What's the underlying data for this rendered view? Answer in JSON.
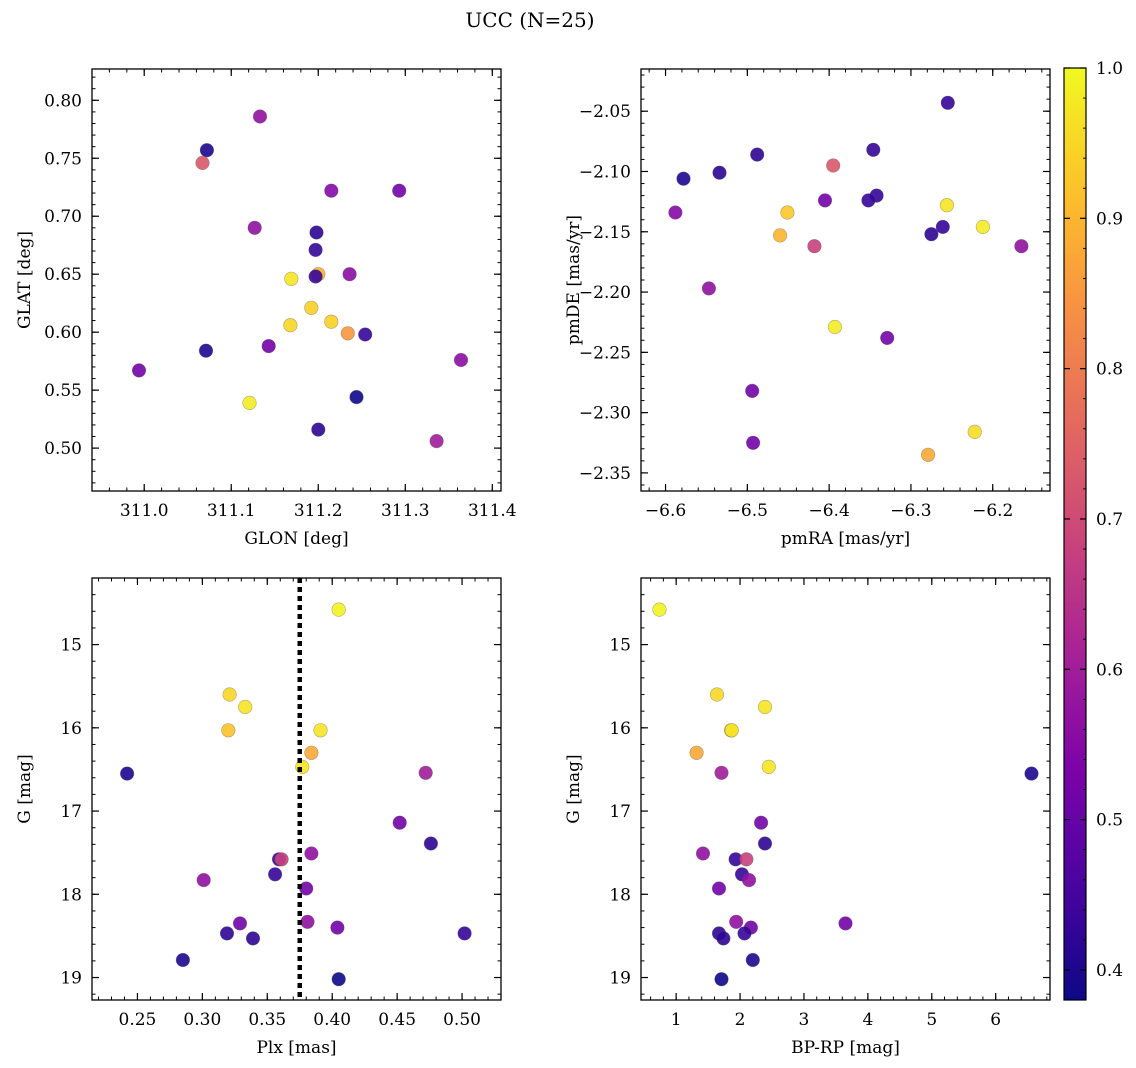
{
  "title": "UCC (N=25)",
  "colorbar": {
    "min": 0.38,
    "max": 1.0,
    "ticks": [
      "0.4",
      "0.5",
      "0.6",
      "0.7",
      "0.8",
      "0.9",
      "1.0"
    ],
    "colormap": "plasma"
  },
  "chart_data": [
    {
      "type": "scatter",
      "xlabel": "GLON [deg]",
      "ylabel": "GLAT [deg]",
      "xlim": [
        310.94,
        311.41
      ],
      "ylim": [
        0.463,
        0.827
      ],
      "xticks": [
        "311.0",
        "311.1",
        "311.2",
        "311.3",
        "311.4"
      ],
      "yticks": [
        "0.50",
        "0.55",
        "0.60",
        "0.65",
        "0.70",
        "0.75",
        "0.80"
      ],
      "points": [
        {
          "x": 311.133,
          "y": 0.786,
          "c": 0.57
        },
        {
          "x": 311.072,
          "y": 0.757,
          "c": 0.4
        },
        {
          "x": 311.067,
          "y": 0.746,
          "c": 0.73
        },
        {
          "x": 311.215,
          "y": 0.722,
          "c": 0.55
        },
        {
          "x": 311.293,
          "y": 0.722,
          "c": 0.52
        },
        {
          "x": 311.127,
          "y": 0.69,
          "c": 0.57
        },
        {
          "x": 311.198,
          "y": 0.686,
          "c": 0.42
        },
        {
          "x": 311.197,
          "y": 0.671,
          "c": 0.43
        },
        {
          "x": 311.2,
          "y": 0.65,
          "c": 0.9
        },
        {
          "x": 311.236,
          "y": 0.65,
          "c": 0.56
        },
        {
          "x": 311.197,
          "y": 0.648,
          "c": 0.43
        },
        {
          "x": 311.169,
          "y": 0.646,
          "c": 0.97
        },
        {
          "x": 311.192,
          "y": 0.621,
          "c": 0.94
        },
        {
          "x": 311.215,
          "y": 0.609,
          "c": 0.94
        },
        {
          "x": 311.168,
          "y": 0.606,
          "c": 0.95
        },
        {
          "x": 311.234,
          "y": 0.599,
          "c": 0.85
        },
        {
          "x": 311.254,
          "y": 0.598,
          "c": 0.43
        },
        {
          "x": 311.143,
          "y": 0.588,
          "c": 0.52
        },
        {
          "x": 311.071,
          "y": 0.584,
          "c": 0.4
        },
        {
          "x": 310.994,
          "y": 0.567,
          "c": 0.52
        },
        {
          "x": 311.364,
          "y": 0.576,
          "c": 0.56
        },
        {
          "x": 311.244,
          "y": 0.544,
          "c": 0.38
        },
        {
          "x": 311.121,
          "y": 0.539,
          "c": 0.98
        },
        {
          "x": 311.2,
          "y": 0.516,
          "c": 0.42
        },
        {
          "x": 311.336,
          "y": 0.506,
          "c": 0.6
        }
      ]
    },
    {
      "type": "scatter",
      "xlabel": "pmRA [mas/yr]",
      "ylabel": "pmDE [mas/yr]",
      "xlim": [
        -6.63,
        -6.13
      ],
      "ylim": [
        -2.365,
        -2.015
      ],
      "xticks": [
        "−6.6",
        "−6.5",
        "−6.4",
        "−6.3",
        "−6.2"
      ],
      "yticks": [
        "−2.35",
        "−2.30",
        "−2.25",
        "−2.20",
        "−2.15",
        "−2.10",
        "−2.05"
      ],
      "points": [
        {
          "x": -6.255,
          "y": -2.043,
          "c": 0.43
        },
        {
          "x": -6.488,
          "y": -2.086,
          "c": 0.42
        },
        {
          "x": -6.346,
          "y": -2.082,
          "c": 0.43
        },
        {
          "x": -6.395,
          "y": -2.095,
          "c": 0.73
        },
        {
          "x": -6.534,
          "y": -2.101,
          "c": 0.42
        },
        {
          "x": -6.578,
          "y": -2.106,
          "c": 0.4
        },
        {
          "x": -6.342,
          "y": -2.12,
          "c": 0.43
        },
        {
          "x": -6.405,
          "y": -2.124,
          "c": 0.52
        },
        {
          "x": -6.352,
          "y": -2.124,
          "c": 0.43
        },
        {
          "x": -6.256,
          "y": -2.128,
          "c": 0.97
        },
        {
          "x": -6.588,
          "y": -2.134,
          "c": 0.55
        },
        {
          "x": -6.451,
          "y": -2.134,
          "c": 0.93
        },
        {
          "x": -6.261,
          "y": -2.146,
          "c": 0.43
        },
        {
          "x": -6.212,
          "y": -2.146,
          "c": 0.98
        },
        {
          "x": -6.275,
          "y": -2.152,
          "c": 0.42
        },
        {
          "x": -6.46,
          "y": -2.153,
          "c": 0.9
        },
        {
          "x": -6.418,
          "y": -2.162,
          "c": 0.68
        },
        {
          "x": -6.165,
          "y": -2.162,
          "c": 0.57
        },
        {
          "x": -6.547,
          "y": -2.197,
          "c": 0.57
        },
        {
          "x": -6.393,
          "y": -2.229,
          "c": 0.98
        },
        {
          "x": -6.329,
          "y": -2.238,
          "c": 0.52
        },
        {
          "x": -6.494,
          "y": -2.282,
          "c": 0.52
        },
        {
          "x": -6.222,
          "y": -2.316,
          "c": 0.96
        },
        {
          "x": -6.493,
          "y": -2.325,
          "c": 0.52
        },
        {
          "x": -6.279,
          "y": -2.335,
          "c": 0.88
        }
      ]
    },
    {
      "type": "scatter",
      "xlabel": "Plx [mas]",
      "ylabel": "G [mag]",
      "xlim": [
        0.215,
        0.53
      ],
      "ylim": [
        19.27,
        14.2
      ],
      "y_inverted": true,
      "vline": 0.375,
      "xticks": [
        "0.25",
        "0.30",
        "0.35",
        "0.40",
        "0.45",
        "0.50"
      ],
      "yticks": [
        "15",
        "16",
        "17",
        "18",
        "19"
      ],
      "points": [
        {
          "x": 0.405,
          "y": 14.58,
          "c": 0.99
        },
        {
          "x": 0.321,
          "y": 15.6,
          "c": 0.95
        },
        {
          "x": 0.333,
          "y": 15.75,
          "c": 0.97
        },
        {
          "x": 0.32,
          "y": 16.03,
          "c": 0.92
        },
        {
          "x": 0.391,
          "y": 16.03,
          "c": 0.97
        },
        {
          "x": 0.384,
          "y": 16.3,
          "c": 0.88
        },
        {
          "x": 0.377,
          "y": 16.47,
          "c": 0.97
        },
        {
          "x": 0.242,
          "y": 16.55,
          "c": 0.4
        },
        {
          "x": 0.472,
          "y": 16.54,
          "c": 0.6
        },
        {
          "x": 0.452,
          "y": 17.14,
          "c": 0.52
        },
        {
          "x": 0.476,
          "y": 17.39,
          "c": 0.42
        },
        {
          "x": 0.384,
          "y": 17.51,
          "c": 0.57
        },
        {
          "x": 0.359,
          "y": 17.58,
          "c": 0.43
        },
        {
          "x": 0.361,
          "y": 17.58,
          "c": 0.68
        },
        {
          "x": 0.356,
          "y": 17.76,
          "c": 0.43
        },
        {
          "x": 0.301,
          "y": 17.83,
          "c": 0.57
        },
        {
          "x": 0.38,
          "y": 17.93,
          "c": 0.52
        },
        {
          "x": 0.381,
          "y": 18.33,
          "c": 0.57
        },
        {
          "x": 0.329,
          "y": 18.35,
          "c": 0.52
        },
        {
          "x": 0.404,
          "y": 18.4,
          "c": 0.52
        },
        {
          "x": 0.319,
          "y": 18.47,
          "c": 0.42
        },
        {
          "x": 0.502,
          "y": 18.47,
          "c": 0.43
        },
        {
          "x": 0.339,
          "y": 18.53,
          "c": 0.42
        },
        {
          "x": 0.285,
          "y": 18.79,
          "c": 0.4
        },
        {
          "x": 0.405,
          "y": 19.02,
          "c": 0.38
        }
      ]
    },
    {
      "type": "scatter",
      "xlabel": "BP-RP [mag]",
      "ylabel": "G [mag]",
      "xlim": [
        0.45,
        6.85
      ],
      "ylim": [
        19.27,
        14.2
      ],
      "y_inverted": true,
      "xticks": [
        "1",
        "2",
        "3",
        "4",
        "5",
        "6"
      ],
      "yticks": [
        "15",
        "16",
        "17",
        "18",
        "19"
      ],
      "points": [
        {
          "x": 0.74,
          "y": 14.58,
          "c": 0.99
        },
        {
          "x": 1.64,
          "y": 15.6,
          "c": 0.95
        },
        {
          "x": 2.39,
          "y": 15.75,
          "c": 0.97
        },
        {
          "x": 1.86,
          "y": 16.03,
          "c": 0.92
        },
        {
          "x": 1.87,
          "y": 16.03,
          "c": 0.97
        },
        {
          "x": 1.32,
          "y": 16.3,
          "c": 0.88
        },
        {
          "x": 2.45,
          "y": 16.47,
          "c": 0.97
        },
        {
          "x": 1.71,
          "y": 16.54,
          "c": 0.6
        },
        {
          "x": 6.56,
          "y": 16.55,
          "c": 0.4
        },
        {
          "x": 2.33,
          "y": 17.14,
          "c": 0.52
        },
        {
          "x": 2.39,
          "y": 17.39,
          "c": 0.42
        },
        {
          "x": 1.42,
          "y": 17.51,
          "c": 0.57
        },
        {
          "x": 1.93,
          "y": 17.58,
          "c": 0.43
        },
        {
          "x": 2.1,
          "y": 17.58,
          "c": 0.68
        },
        {
          "x": 2.03,
          "y": 17.76,
          "c": 0.43
        },
        {
          "x": 2.14,
          "y": 17.83,
          "c": 0.57
        },
        {
          "x": 1.67,
          "y": 17.93,
          "c": 0.52
        },
        {
          "x": 1.94,
          "y": 18.33,
          "c": 0.57
        },
        {
          "x": 3.65,
          "y": 18.35,
          "c": 0.52
        },
        {
          "x": 2.17,
          "y": 18.4,
          "c": 0.52
        },
        {
          "x": 1.67,
          "y": 18.47,
          "c": 0.42
        },
        {
          "x": 2.07,
          "y": 18.47,
          "c": 0.43
        },
        {
          "x": 1.74,
          "y": 18.53,
          "c": 0.42
        },
        {
          "x": 2.2,
          "y": 18.79,
          "c": 0.4
        },
        {
          "x": 1.71,
          "y": 19.02,
          "c": 0.38
        }
      ]
    }
  ]
}
